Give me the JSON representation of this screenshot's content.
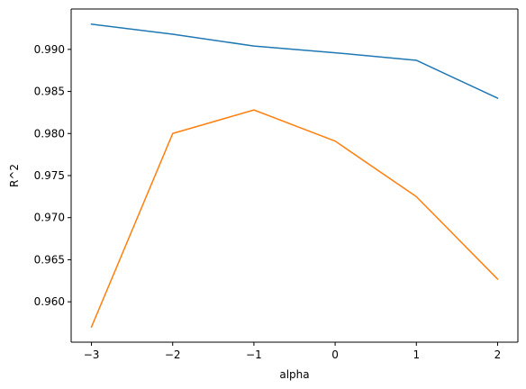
{
  "chart_data": {
    "type": "line",
    "title": "",
    "xlabel": "alpha",
    "ylabel": "R^2",
    "x": [
      -3,
      -2,
      -1,
      0,
      1,
      2
    ],
    "series": [
      {
        "values": [
          0.993,
          0.9918,
          0.9904,
          0.9896,
          0.9887,
          0.9842
        ],
        "color": "#1f77b4"
      },
      {
        "values": [
          0.957,
          0.98,
          0.9828,
          0.9791,
          0.9725,
          0.9627
        ],
        "color": "#ff7f0e"
      }
    ],
    "xlim": [
      -3.25,
      2.25
    ],
    "ylim": [
      0.9552,
      0.9948
    ],
    "xticks": [
      -3,
      -2,
      -1,
      0,
      1,
      2
    ],
    "xtick_labels": [
      "−3",
      "−2",
      "−1",
      "0",
      "1",
      "2"
    ],
    "yticks": [
      0.96,
      0.965,
      0.97,
      0.975,
      0.98,
      0.985,
      0.99
    ],
    "ytick_labels": [
      "0.960",
      "0.965",
      "0.970",
      "0.975",
      "0.980",
      "0.985",
      "0.990"
    ],
    "grid": false,
    "legend": "none"
  }
}
